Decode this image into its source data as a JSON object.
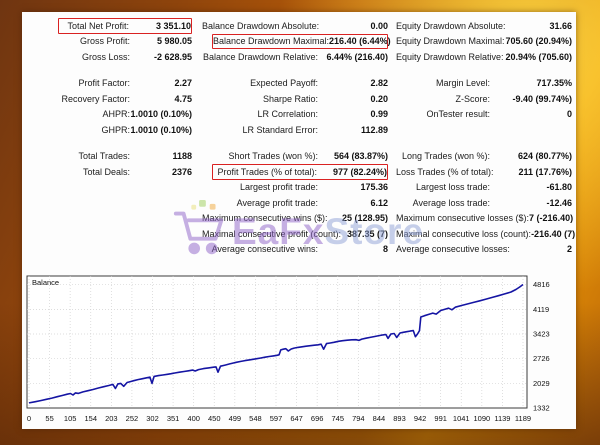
{
  "frame": {
    "accent_dark": "#6f3511",
    "accent_bright": "#f4ad07",
    "panel_bg": "#fdfdfd",
    "highlight_box_color": "#d92121"
  },
  "watermark": {
    "icon": "shopping-cart-icon",
    "brand_first": "EaFx",
    "brand_second": "Store",
    "color_first": "#8f63c9",
    "color_second": "#8fa0d6"
  },
  "stats": {
    "columns": [
      {
        "name": "left",
        "rows": [
          {
            "label": "Total Net Profit:",
            "value": "3 351.10",
            "boxed": true
          },
          {
            "label": "Gross Profit:",
            "value": "5 980.05"
          },
          {
            "label": "Gross Loss:",
            "value": "-2 628.95"
          },
          {
            "spacer": true
          },
          {
            "label": "Profit Factor:",
            "value": "2.27"
          },
          {
            "label": "Recovery Factor:",
            "value": "4.75"
          },
          {
            "label": "AHPR:",
            "value": "1.0010 (0.10%)"
          },
          {
            "label": "GHPR:",
            "value": "1.0010 (0.10%)"
          },
          {
            "spacer": true
          },
          {
            "label": "Total Trades:",
            "value": "1188"
          },
          {
            "label": "Total Deals:",
            "value": "2376"
          },
          {
            "label": "",
            "value": ""
          },
          {
            "label": "",
            "value": ""
          },
          {
            "label": "",
            "value": ""
          },
          {
            "label": "",
            "value": ""
          },
          {
            "label": "",
            "value": ""
          }
        ]
      },
      {
        "name": "middle",
        "rows": [
          {
            "label": "Balance Drawdown Absolute:",
            "value": "0.00"
          },
          {
            "label": "Balance Drawdown Maximal:",
            "value": "216.40 (6.44%)",
            "boxed": true
          },
          {
            "label": "Balance Drawdown Relative:",
            "value": "6.44% (216.40)"
          },
          {
            "spacer": true
          },
          {
            "label": "Expected Payoff:",
            "value": "2.82"
          },
          {
            "label": "Sharpe Ratio:",
            "value": "0.20"
          },
          {
            "label": "LR Correlation:",
            "value": "0.99"
          },
          {
            "label": "LR Standard Error:",
            "value": "112.89"
          },
          {
            "spacer": true
          },
          {
            "label": "Short Trades (won %):",
            "value": "564 (83.87%)"
          },
          {
            "label": "Profit Trades (% of total):",
            "value": "977 (82.24%)",
            "boxed": true
          },
          {
            "label": "Largest profit trade:",
            "value": "175.36"
          },
          {
            "label": "Average profit trade:",
            "value": "6.12"
          },
          {
            "label": "Maximum consecutive wins ($):",
            "value": "25 (128.95)"
          },
          {
            "label": "Maximal consecutive profit (count):",
            "value": "387.35 (7)"
          },
          {
            "label": "Average consecutive wins:",
            "value": "8"
          }
        ]
      },
      {
        "name": "right",
        "rows": [
          {
            "label": "Equity Drawdown Absolute:",
            "value": "31.66"
          },
          {
            "label": "Equity Drawdown Maximal:",
            "value": "705.60 (20.94%)"
          },
          {
            "label": "Equity Drawdown Relative:",
            "value": "20.94% (705.60)"
          },
          {
            "spacer": true
          },
          {
            "label": "Margin Level:",
            "value": "717.35%"
          },
          {
            "label": "Z-Score:",
            "value": "-9.40 (99.74%)"
          },
          {
            "label": "OnTester result:",
            "value": "0"
          },
          {
            "label": "",
            "value": ""
          },
          {
            "spacer": true
          },
          {
            "label": "Long Trades (won %):",
            "value": "624 (80.77%)"
          },
          {
            "label": "Loss Trades (% of total):",
            "value": "211 (17.76%)"
          },
          {
            "label": "Largest loss trade:",
            "value": "-61.80"
          },
          {
            "label": "Average loss trade:",
            "value": "-12.46"
          },
          {
            "label": "Maximum consecutive losses ($):",
            "value": "7 (-216.40)"
          },
          {
            "label": "Maximal consecutive loss (count):",
            "value": "-216.40 (7)"
          },
          {
            "label": "Average consecutive losses:",
            "value": "2"
          }
        ]
      }
    ]
  },
  "chart_data": {
    "type": "line",
    "title": "Balance",
    "legend_label": "Balance",
    "line_color": "#1515a3",
    "grid": "dotted",
    "xlim": [
      0,
      1189
    ],
    "ylim": [
      1332,
      5062
    ],
    "x_ticks": [
      "0",
      "55",
      "105",
      "154",
      "203",
      "252",
      "302",
      "351",
      "400",
      "450",
      "499",
      "548",
      "597",
      "647",
      "696",
      "745",
      "794",
      "844",
      "893",
      "942",
      "991",
      "1041",
      "1090",
      "1139",
      "1189"
    ],
    "y_grid_values": [
      2029,
      2726,
      3423,
      4119,
      4816
    ],
    "y_tick_labels": [
      "4816",
      "4119",
      "3423",
      "2726",
      "2029",
      "1332"
    ],
    "series": [
      {
        "name": "Balance",
        "points": [
          [
            0,
            1475
          ],
          [
            14,
            1508
          ],
          [
            28,
            1540
          ],
          [
            42,
            1578
          ],
          [
            55,
            1612
          ],
          [
            68,
            1652
          ],
          [
            80,
            1684
          ],
          [
            92,
            1722
          ],
          [
            100,
            1742
          ],
          [
            106,
            1698
          ],
          [
            112,
            1758
          ],
          [
            119,
            1744
          ],
          [
            130,
            1788
          ],
          [
            142,
            1820
          ],
          [
            154,
            1854
          ],
          [
            167,
            1898
          ],
          [
            180,
            1934
          ],
          [
            192,
            1968
          ],
          [
            202,
            1998
          ],
          [
            208,
            1884
          ],
          [
            214,
            2012
          ],
          [
            221,
            2028
          ],
          [
            228,
            1944
          ],
          [
            236,
            2052
          ],
          [
            245,
            2082
          ],
          [
            252,
            2104
          ],
          [
            262,
            2134
          ],
          [
            272,
            2158
          ],
          [
            283,
            2184
          ],
          [
            291,
            2204
          ],
          [
            296,
            2028
          ],
          [
            301,
            2224
          ],
          [
            312,
            2248
          ],
          [
            322,
            2264
          ],
          [
            333,
            2284
          ],
          [
            342,
            2300
          ],
          [
            351,
            2320
          ],
          [
            362,
            2344
          ],
          [
            373,
            2364
          ],
          [
            384,
            2384
          ],
          [
            394,
            2404
          ],
          [
            400,
            2378
          ],
          [
            408,
            2418
          ],
          [
            420,
            2444
          ],
          [
            432,
            2464
          ],
          [
            444,
            2484
          ],
          [
            450,
            2494
          ],
          [
            455,
            2344
          ],
          [
            461,
            2514
          ],
          [
            472,
            2544
          ],
          [
            483,
            2578
          ],
          [
            492,
            2604
          ],
          [
            499,
            2624
          ],
          [
            510,
            2648
          ],
          [
            520,
            2670
          ],
          [
            532,
            2694
          ],
          [
            541,
            2712
          ],
          [
            548,
            2724
          ],
          [
            558,
            2746
          ],
          [
            568,
            2768
          ],
          [
            578,
            2788
          ],
          [
            588,
            2804
          ],
          [
            597,
            2820
          ],
          [
            602,
            2834
          ],
          [
            606,
            2974
          ],
          [
            612,
            2994
          ],
          [
            618,
            3008
          ],
          [
            624,
            2944
          ],
          [
            631,
            3000
          ],
          [
            638,
            3024
          ],
          [
            647,
            3044
          ],
          [
            657,
            3062
          ],
          [
            667,
            3078
          ],
          [
            677,
            3092
          ],
          [
            687,
            3106
          ],
          [
            696,
            3118
          ],
          [
            703,
            3134
          ],
          [
            709,
            2994
          ],
          [
            716,
            3152
          ],
          [
            725,
            3170
          ],
          [
            734,
            3188
          ],
          [
            745,
            3218
          ],
          [
            755,
            3234
          ],
          [
            766,
            3248
          ],
          [
            777,
            3258
          ],
          [
            787,
            3262
          ],
          [
            794,
            3242
          ],
          [
            801,
            3280
          ],
          [
            811,
            3304
          ],
          [
            821,
            3326
          ],
          [
            832,
            3352
          ],
          [
            844,
            3382
          ],
          [
            852,
            3398
          ],
          [
            859,
            3408
          ],
          [
            864,
            3298
          ],
          [
            871,
            3422
          ],
          [
            879,
            3438
          ],
          [
            885,
            3324
          ],
          [
            893,
            3452
          ],
          [
            901,
            3472
          ],
          [
            909,
            3488
          ],
          [
            917,
            3504
          ],
          [
            925,
            3520
          ],
          [
            930,
            3348
          ],
          [
            935,
            3424
          ],
          [
            940,
            3520
          ],
          [
            943,
            3904
          ],
          [
            952,
            3940
          ],
          [
            962,
            3978
          ],
          [
            972,
            4014
          ],
          [
            980,
            3984
          ],
          [
            991,
            4088
          ],
          [
            1000,
            4118
          ],
          [
            1010,
            4152
          ],
          [
            1018,
            4108
          ],
          [
            1026,
            4180
          ],
          [
            1041,
            4228
          ],
          [
            1055,
            4270
          ],
          [
            1070,
            4316
          ],
          [
            1085,
            4362
          ],
          [
            1100,
            4410
          ],
          [
            1115,
            4458
          ],
          [
            1130,
            4506
          ],
          [
            1145,
            4556
          ],
          [
            1160,
            4610
          ],
          [
            1172,
            4680
          ],
          [
            1181,
            4750
          ],
          [
            1189,
            4822
          ]
        ]
      }
    ]
  }
}
